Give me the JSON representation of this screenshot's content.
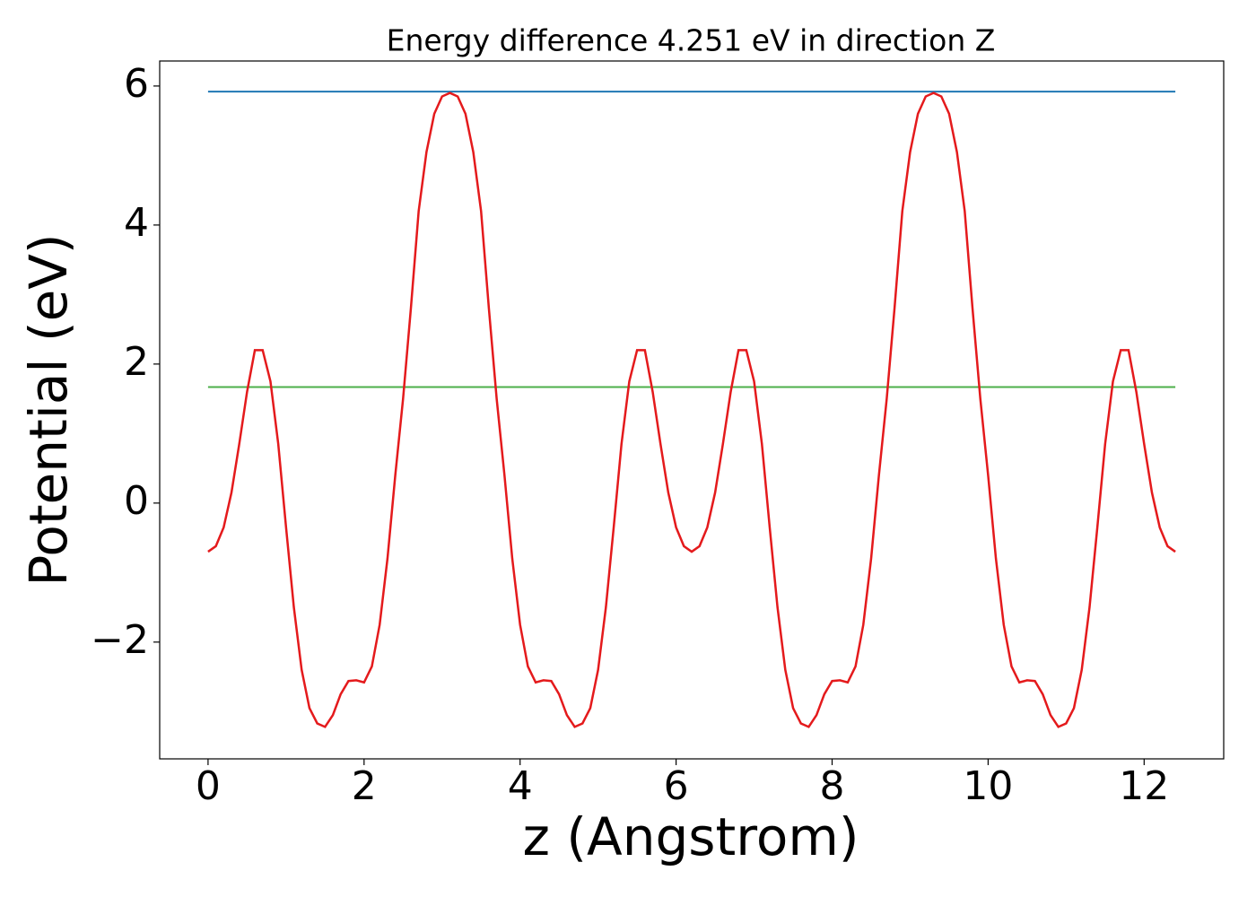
{
  "chart_data": {
    "type": "line",
    "title": "Energy difference 4.251 eV in direction Z",
    "xlabel": "z (Angstrom)",
    "ylabel": "Potential (eV)",
    "xlim": [
      -0.62,
      13.02
    ],
    "ylim": [
      -3.68,
      6.36
    ],
    "xticks": [
      0,
      2,
      4,
      6,
      8,
      10,
      12
    ],
    "yticks": [
      {
        "value": -2,
        "label": "−2"
      },
      0,
      2,
      4,
      6
    ],
    "series": [
      {
        "color": "#1f77b4",
        "x": [
          0,
          12.4
        ],
        "values": [
          5.92,
          5.92
        ]
      },
      {
        "color": "#4daf4a",
        "x": [
          0,
          12.4
        ],
        "values": [
          1.669,
          1.669
        ]
      },
      {
        "color": "#e41a1c",
        "x": [
          0,
          0.1,
          0.2,
          0.3,
          0.4,
          0.5,
          0.6,
          0.7,
          0.8,
          0.9,
          1,
          1.1,
          1.2,
          1.3,
          1.4,
          1.5,
          1.6,
          1.7,
          1.8,
          1.9,
          2,
          2.1,
          2.2,
          2.3,
          2.4,
          2.5,
          2.6,
          2.7,
          2.8,
          2.9,
          3,
          3.1,
          3.2,
          3.3,
          3.4,
          3.5,
          3.6,
          3.7,
          3.8,
          3.9,
          4,
          4.1,
          4.2,
          4.3,
          4.4,
          4.5,
          4.6,
          4.7,
          4.8,
          4.9,
          5,
          5.1,
          5.2,
          5.3,
          5.4,
          5.5,
          5.6,
          5.7,
          5.8,
          5.9,
          6,
          6.1,
          6.2,
          6.3,
          6.4,
          6.5,
          6.6,
          6.7,
          6.8,
          6.9,
          7,
          7.1,
          7.2,
          7.3,
          7.4,
          7.5,
          7.6,
          7.7,
          7.8,
          7.9,
          8,
          8.1,
          8.2,
          8.3,
          8.4,
          8.5,
          8.6,
          8.7,
          8.8,
          8.9,
          9,
          9.1,
          9.2,
          9.3,
          9.4,
          9.5,
          9.6,
          9.7,
          9.8,
          9.9,
          10,
          10.1,
          10.2,
          10.3,
          10.4,
          10.5,
          10.6,
          10.7,
          10.8,
          10.9,
          11,
          11.1,
          11.2,
          11.3,
          11.4,
          11.5,
          11.6,
          11.7,
          11.8,
          11.9,
          12,
          12.1,
          12.2,
          12.3,
          12.4
        ],
        "values": [
          -0.7,
          -0.62,
          -0.35,
          0.15,
          0.85,
          1.6,
          2.2,
          2.2,
          1.75,
          0.85,
          -0.35,
          -1.5,
          -2.4,
          -2.95,
          -3.17,
          -3.22,
          -3.05,
          -2.75,
          -2.56,
          -2.55,
          -2.58,
          -2.35,
          -1.75,
          -0.8,
          0.4,
          1.5,
          2.8,
          4.2,
          5.05,
          5.6,
          5.85,
          5.9,
          5.85,
          5.6,
          5.05,
          4.2,
          2.8,
          1.5,
          0.4,
          -0.8,
          -1.75,
          -2.35,
          -2.58,
          -2.55,
          -2.56,
          -2.75,
          -3.05,
          -3.22,
          -3.17,
          -2.95,
          -2.4,
          -1.5,
          -0.35,
          0.85,
          1.75,
          2.2,
          2.2,
          1.6,
          0.85,
          0.15,
          -0.35,
          -0.62,
          -0.7,
          -0.62,
          -0.35,
          0.15,
          0.85,
          1.6,
          2.2,
          2.2,
          1.75,
          0.85,
          -0.35,
          -1.5,
          -2.4,
          -2.95,
          -3.17,
          -3.22,
          -3.05,
          -2.75,
          -2.56,
          -2.55,
          -2.58,
          -2.35,
          -1.75,
          -0.8,
          0.4,
          1.5,
          2.8,
          4.2,
          5.05,
          5.6,
          5.85,
          5.9,
          5.85,
          5.6,
          5.05,
          4.2,
          2.8,
          1.5,
          0.4,
          -0.8,
          -1.75,
          -2.35,
          -2.58,
          -2.55,
          -2.56,
          -2.75,
          -3.05,
          -3.22,
          -3.17,
          -2.95,
          -2.4,
          -1.5,
          -0.35,
          0.85,
          1.75,
          2.2,
          2.2,
          1.6,
          0.85,
          0.15,
          -0.35,
          -0.62,
          -0.7
        ]
      }
    ]
  }
}
